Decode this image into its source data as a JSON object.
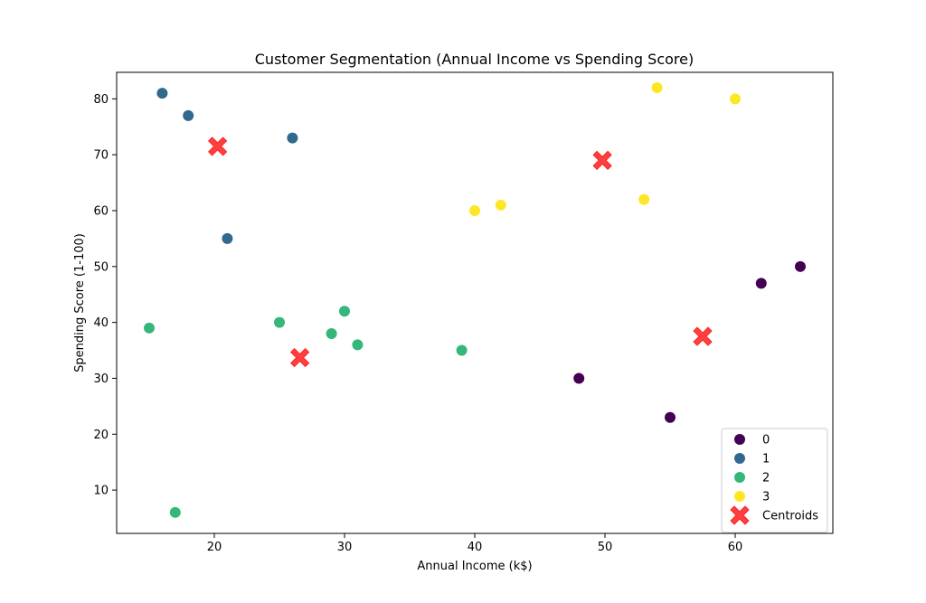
{
  "chart_data": {
    "type": "scatter",
    "title": "Customer Segmentation (Annual Income vs Spending Score)",
    "xlabel": "Annual Income (k$)",
    "ylabel": "Spending Score (1-100)",
    "xlim": [
      12.5,
      67.5
    ],
    "ylim": [
      2.25,
      84.75
    ],
    "xticks": [
      20,
      30,
      40,
      50,
      60
    ],
    "yticks": [
      10,
      20,
      30,
      40,
      50,
      60,
      70,
      80
    ],
    "grid": false,
    "legend_position": "lower right",
    "series": [
      {
        "name": "0",
        "color": "#440154",
        "marker": "circle",
        "points": [
          [
            48,
            30
          ],
          [
            55,
            23
          ],
          [
            62,
            47
          ],
          [
            65,
            50
          ]
        ]
      },
      {
        "name": "1",
        "color": "#31688e",
        "marker": "circle",
        "points": [
          [
            16,
            81
          ],
          [
            18,
            77
          ],
          [
            21,
            55
          ],
          [
            26,
            73
          ]
        ]
      },
      {
        "name": "2",
        "color": "#35b779",
        "marker": "circle",
        "points": [
          [
            15,
            39
          ],
          [
            17,
            6
          ],
          [
            25,
            40
          ],
          [
            29,
            38
          ],
          [
            30,
            42
          ],
          [
            31,
            36
          ],
          [
            39,
            35
          ]
        ]
      },
      {
        "name": "3",
        "color": "#fde725",
        "marker": "circle",
        "points": [
          [
            40,
            60
          ],
          [
            42,
            61
          ],
          [
            53,
            62
          ],
          [
            54,
            82
          ],
          [
            60,
            80
          ]
        ]
      },
      {
        "name": "Centroids",
        "color": "#ff0000",
        "marker": "X",
        "points": [
          [
            20.25,
            71.5
          ],
          [
            26.57,
            33.7
          ],
          [
            49.8,
            69.0
          ],
          [
            57.5,
            37.5
          ]
        ]
      }
    ]
  }
}
